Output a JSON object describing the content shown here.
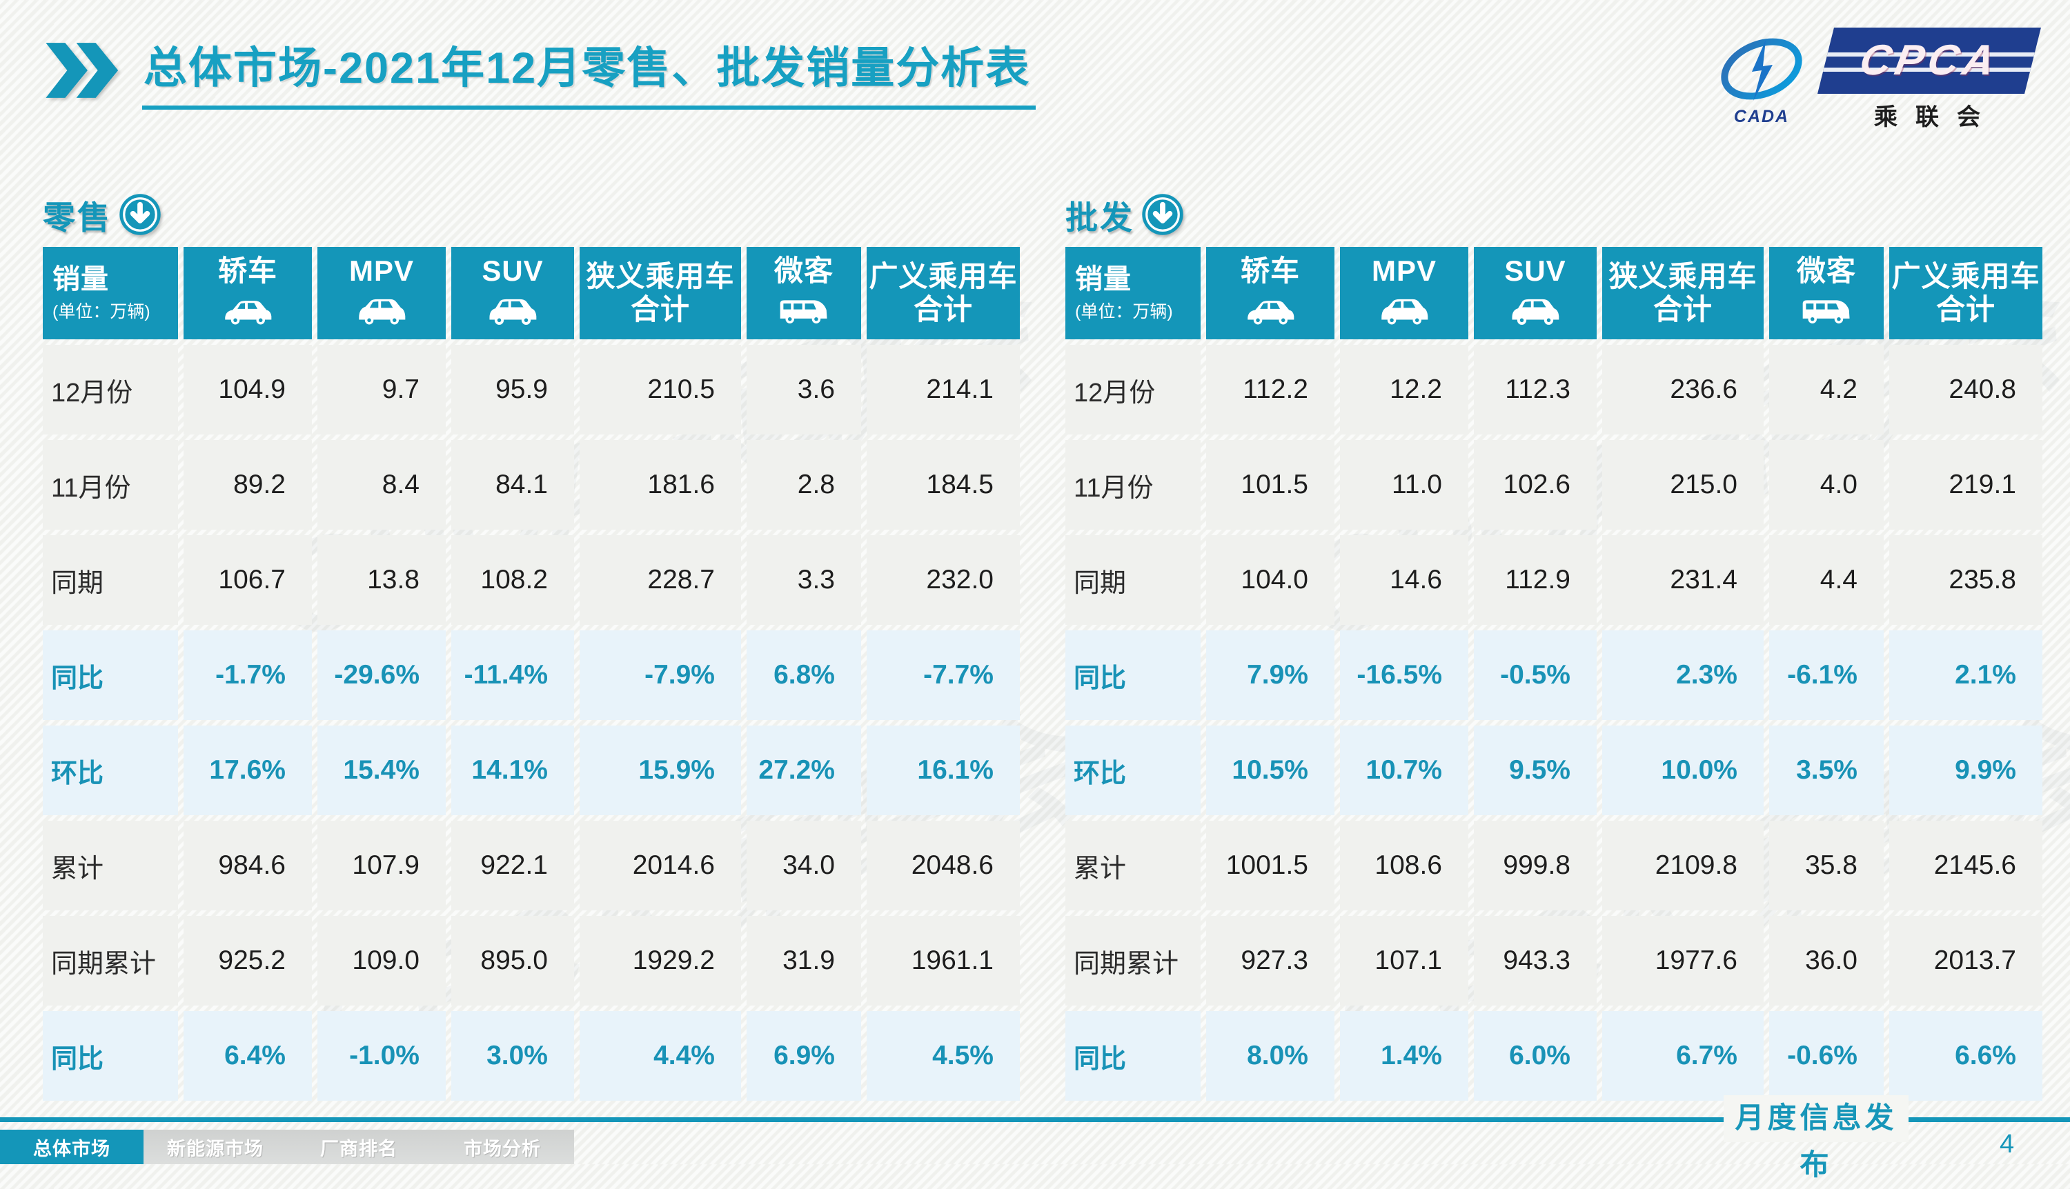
{
  "page": {
    "title": "总体市场-2021年12月零售、批发销量分析表",
    "footer_label": "月度信息发布",
    "page_number": "4"
  },
  "colors": {
    "accent_teal": "#1496b9",
    "title_teal": "#17a0c2",
    "percent_row_bg": "#e8f3fa",
    "normal_row_bg": "#f0f1ee",
    "logo_navy": "#1f3e8f"
  },
  "logo": {
    "cpca": "CPCA",
    "cada": "CADA",
    "association": "乘联会"
  },
  "table_header": {
    "first_label": "销量",
    "first_sub": "(单位：万辆)",
    "columns": [
      {
        "label": "轿车",
        "icon": "sedan"
      },
      {
        "label": "MPV",
        "icon": "mpv"
      },
      {
        "label": "SUV",
        "icon": "suv"
      },
      {
        "label": "狭义乘用车",
        "line2": "合计",
        "icon": null
      },
      {
        "label": "微客",
        "icon": "van"
      },
      {
        "label": "广义乘用车",
        "line2": "合计",
        "icon": null
      }
    ]
  },
  "tables": [
    {
      "section_label": "零售",
      "rows": [
        {
          "label": "12月份",
          "type": "value",
          "values": [
            "104.9",
            "9.7",
            "95.9",
            "210.5",
            "3.6",
            "214.1"
          ]
        },
        {
          "label": "11月份",
          "type": "value",
          "values": [
            "89.2",
            "8.4",
            "84.1",
            "181.6",
            "2.8",
            "184.5"
          ]
        },
        {
          "label": "同期",
          "type": "value",
          "values": [
            "106.7",
            "13.8",
            "108.2",
            "228.7",
            "3.3",
            "232.0"
          ]
        },
        {
          "label": "同比",
          "type": "percent",
          "values": [
            "-1.7%",
            "-29.6%",
            "-11.4%",
            "-7.9%",
            "6.8%",
            "-7.7%"
          ]
        },
        {
          "label": "环比",
          "type": "percent",
          "values": [
            "17.6%",
            "15.4%",
            "14.1%",
            "15.9%",
            "27.2%",
            "16.1%"
          ]
        },
        {
          "label": "累计",
          "type": "value",
          "values": [
            "984.6",
            "107.9",
            "922.1",
            "2014.6",
            "34.0",
            "2048.6"
          ]
        },
        {
          "label": "同期累计",
          "type": "value",
          "values": [
            "925.2",
            "109.0",
            "895.0",
            "1929.2",
            "31.9",
            "1961.1"
          ]
        },
        {
          "label": "同比",
          "type": "percent",
          "values": [
            "6.4%",
            "-1.0%",
            "3.0%",
            "4.4%",
            "6.9%",
            "4.5%"
          ]
        }
      ]
    },
    {
      "section_label": "批发",
      "rows": [
        {
          "label": "12月份",
          "type": "value",
          "values": [
            "112.2",
            "12.2",
            "112.3",
            "236.6",
            "4.2",
            "240.8"
          ]
        },
        {
          "label": "11月份",
          "type": "value",
          "values": [
            "101.5",
            "11.0",
            "102.6",
            "215.0",
            "4.0",
            "219.1"
          ]
        },
        {
          "label": "同期",
          "type": "value",
          "values": [
            "104.0",
            "14.6",
            "112.9",
            "231.4",
            "4.4",
            "235.8"
          ]
        },
        {
          "label": "同比",
          "type": "percent",
          "values": [
            "7.9%",
            "-16.5%",
            "-0.5%",
            "2.3%",
            "-6.1%",
            "2.1%"
          ]
        },
        {
          "label": "环比",
          "type": "percent",
          "values": [
            "10.5%",
            "10.7%",
            "9.5%",
            "10.0%",
            "3.5%",
            "9.9%"
          ]
        },
        {
          "label": "累计",
          "type": "value",
          "values": [
            "1001.5",
            "108.6",
            "999.8",
            "2109.8",
            "35.8",
            "2145.6"
          ]
        },
        {
          "label": "同期累计",
          "type": "value",
          "values": [
            "927.3",
            "107.1",
            "943.3",
            "1977.6",
            "36.0",
            "2013.7"
          ]
        },
        {
          "label": "同比",
          "type": "percent",
          "values": [
            "8.0%",
            "1.4%",
            "6.0%",
            "6.7%",
            "-0.6%",
            "6.6%"
          ]
        }
      ]
    }
  ],
  "nav": {
    "tabs": [
      {
        "label": "总体市场",
        "active": true
      },
      {
        "label": "新能源市场",
        "active": false
      },
      {
        "label": "厂商排名",
        "active": false
      },
      {
        "label": "市场分析",
        "active": false
      }
    ]
  }
}
